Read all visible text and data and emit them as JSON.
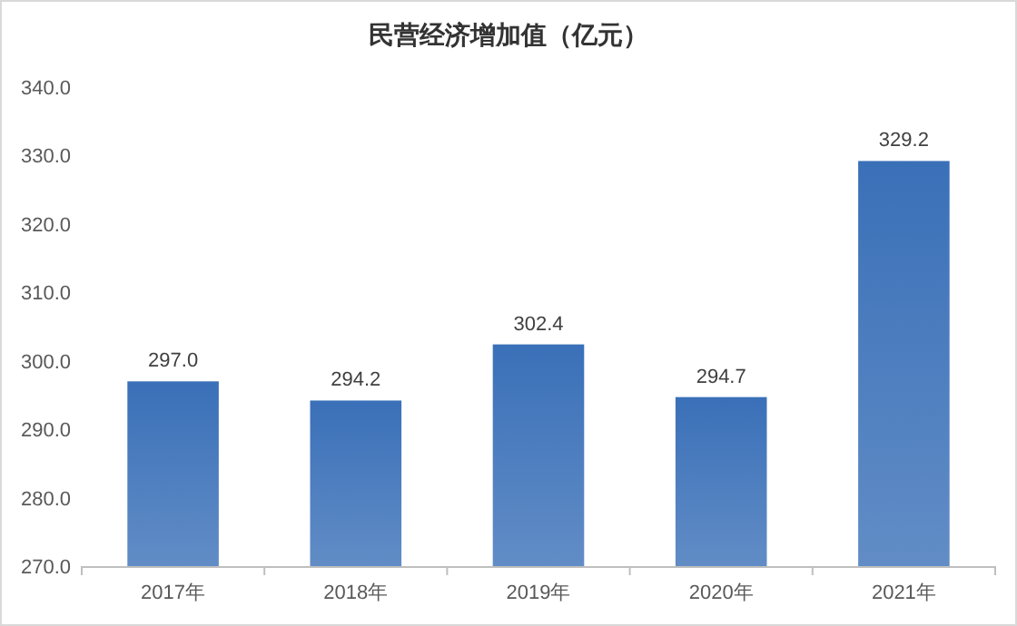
{
  "chart_data": {
    "type": "bar",
    "title": "民营经济增加值（亿元）",
    "categories": [
      "2017年",
      "2018年",
      "2019年",
      "2020年",
      "2021年"
    ],
    "values": [
      297.0,
      294.2,
      302.4,
      294.7,
      329.2
    ],
    "value_labels": [
      "297.0",
      "294.2",
      "302.4",
      "294.7",
      "329.2"
    ],
    "color": "#3a70b8",
    "ylim": [
      270,
      340
    ],
    "yticks": [
      {
        "value": 270,
        "label": "270.0"
      },
      {
        "value": 280,
        "label": "280.0"
      },
      {
        "value": 290,
        "label": "290.0"
      },
      {
        "value": 300,
        "label": "300.0"
      },
      {
        "value": 310,
        "label": "310.0"
      },
      {
        "value": 320,
        "label": "320.0"
      },
      {
        "value": 330,
        "label": "330.0"
      },
      {
        "value": 340,
        "label": "340.0"
      }
    ],
    "grid": false
  }
}
